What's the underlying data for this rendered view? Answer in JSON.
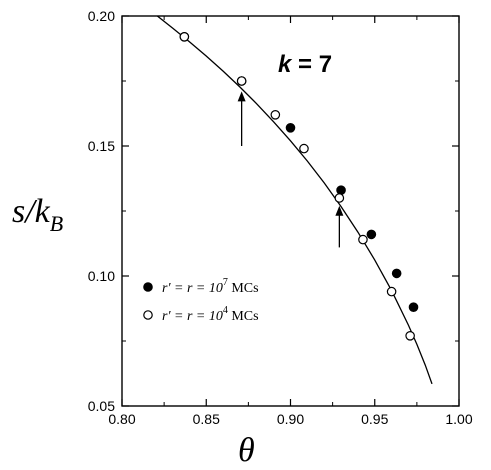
{
  "chart_data": {
    "type": "scatter",
    "annotation": {
      "k_label": "k",
      "eq": " = ",
      "k_value": "7"
    },
    "x_title": "θ",
    "y_title": {
      "main": "s/k",
      "sub": "B"
    },
    "xlim": [
      0.8,
      1.0
    ],
    "ylim": [
      0.05,
      0.2
    ],
    "x_ticks": [
      0.8,
      0.85,
      0.9,
      0.95,
      1.0
    ],
    "x_tick_labels": [
      "0.80",
      "0.85",
      "0.90",
      "0.95",
      "1.00"
    ],
    "y_ticks": [
      0.05,
      0.1,
      0.15,
      0.2
    ],
    "y_tick_labels": [
      "0.05",
      "0.10",
      "0.15",
      "0.20"
    ],
    "grid": false,
    "legend": {
      "placement": "lower-left",
      "entries": [
        {
          "marker": "filled",
          "text_pre": "r′ = r = 10",
          "exp": "7",
          "text_post": " MCs"
        },
        {
          "marker": "open",
          "text_pre": "r′ = r = 10",
          "exp": "4",
          "text_post": " MCs"
        }
      ]
    },
    "series": [
      {
        "marker": "filled",
        "x": [
          0.837,
          0.871,
          0.9,
          0.93,
          0.948,
          0.963,
          0.973
        ],
        "y": [
          0.192,
          0.175,
          0.157,
          0.133,
          0.116,
          0.101,
          0.088
        ]
      },
      {
        "marker": "open",
        "x": [
          0.837,
          0.871,
          0.891,
          0.908,
          0.929,
          0.943,
          0.96,
          0.971
        ],
        "y": [
          0.192,
          0.175,
          0.162,
          0.149,
          0.13,
          0.114,
          0.094,
          0.077
        ]
      }
    ],
    "fit_curve": {
      "x": [
        0.82,
        0.83,
        0.84,
        0.85,
        0.86,
        0.87,
        0.88,
        0.89,
        0.9,
        0.91,
        0.92,
        0.93,
        0.94,
        0.95,
        0.96,
        0.97,
        0.975,
        0.98,
        0.984
      ],
      "y": [
        0.2005,
        0.1954,
        0.1901,
        0.1846,
        0.1788,
        0.1727,
        0.1662,
        0.1593,
        0.152,
        0.1442,
        0.1358,
        0.1267,
        0.1169,
        0.1062,
        0.0944,
        0.0811,
        0.0737,
        0.0657,
        0.0585
      ]
    },
    "arrows": [
      {
        "x": 0.871,
        "y_tail": 0.15,
        "y_head": 0.171
      },
      {
        "x": 0.929,
        "y_tail": 0.111,
        "y_head": 0.127
      }
    ]
  }
}
